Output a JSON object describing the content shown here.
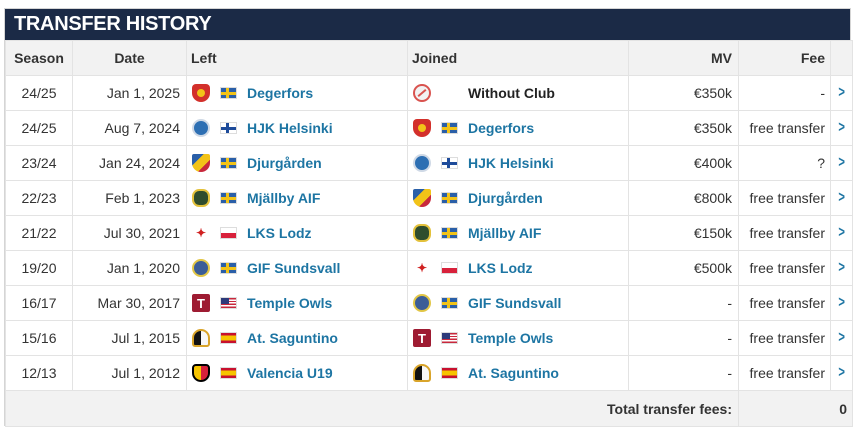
{
  "title": "TRANSFER HISTORY",
  "columns": {
    "season": "Season",
    "date": "Date",
    "left": "Left",
    "joined": "Joined",
    "mv": "MV",
    "fee": "Fee"
  },
  "rows": [
    {
      "season": "24/25",
      "date": "Jan 1, 2025",
      "left": {
        "name": "Degerfors",
        "crest": "degerfors",
        "flag": "sweden"
      },
      "joined": {
        "name": "Without Club",
        "crest": "without",
        "flag": ""
      },
      "mv": "€350k",
      "fee": "-"
    },
    {
      "season": "24/25",
      "date": "Aug 7, 2024",
      "left": {
        "name": "HJK Helsinki",
        "crest": "hjk",
        "flag": "finland"
      },
      "joined": {
        "name": "Degerfors",
        "crest": "degerfors",
        "flag": "sweden"
      },
      "mv": "€350k",
      "fee": "free transfer"
    },
    {
      "season": "23/24",
      "date": "Jan 24, 2024",
      "left": {
        "name": "Djurgården",
        "crest": "djurgarden",
        "flag": "sweden"
      },
      "joined": {
        "name": "HJK Helsinki",
        "crest": "hjk",
        "flag": "finland"
      },
      "mv": "€400k",
      "fee": "?"
    },
    {
      "season": "22/23",
      "date": "Feb 1, 2023",
      "left": {
        "name": "Mjällby AIF",
        "crest": "mjallby",
        "flag": "sweden"
      },
      "joined": {
        "name": "Djurgården",
        "crest": "djurgarden",
        "flag": "sweden"
      },
      "mv": "€800k",
      "fee": "free transfer"
    },
    {
      "season": "21/22",
      "date": "Jul 30, 2021",
      "left": {
        "name": "LKS Lodz",
        "crest": "lks",
        "flag": "poland"
      },
      "joined": {
        "name": "Mjällby AIF",
        "crest": "mjallby",
        "flag": "sweden"
      },
      "mv": "€150k",
      "fee": "free transfer"
    },
    {
      "season": "19/20",
      "date": "Jan 1, 2020",
      "left": {
        "name": "GIF Sundsvall",
        "crest": "gif",
        "flag": "sweden"
      },
      "joined": {
        "name": "LKS Lodz",
        "crest": "lks",
        "flag": "poland"
      },
      "mv": "€500k",
      "fee": "free transfer"
    },
    {
      "season": "16/17",
      "date": "Mar 30, 2017",
      "left": {
        "name": "Temple Owls",
        "crest": "temple",
        "flag": "usa"
      },
      "joined": {
        "name": "GIF Sundsvall",
        "crest": "gif",
        "flag": "sweden"
      },
      "mv": "-",
      "fee": "free transfer"
    },
    {
      "season": "15/16",
      "date": "Jul 1, 2015",
      "left": {
        "name": "At. Saguntino",
        "crest": "saguntino",
        "flag": "spain"
      },
      "joined": {
        "name": "Temple Owls",
        "crest": "temple",
        "flag": "usa"
      },
      "mv": "-",
      "fee": "free transfer"
    },
    {
      "season": "12/13",
      "date": "Jul 1, 2012",
      "left": {
        "name": "Valencia U19",
        "crest": "valencia",
        "flag": "spain"
      },
      "joined": {
        "name": "At. Saguntino",
        "crest": "saguntino",
        "flag": "spain"
      },
      "mv": "-",
      "fee": "free transfer"
    }
  ],
  "footer": {
    "label": "Total transfer fees:",
    "value": "0"
  },
  "icons": {
    "row_action": "chevron-right-icon"
  },
  "colors": {
    "header_bar": "#1b2a46",
    "link": "#1d75a3",
    "header_bg": "#f2f2f2"
  }
}
